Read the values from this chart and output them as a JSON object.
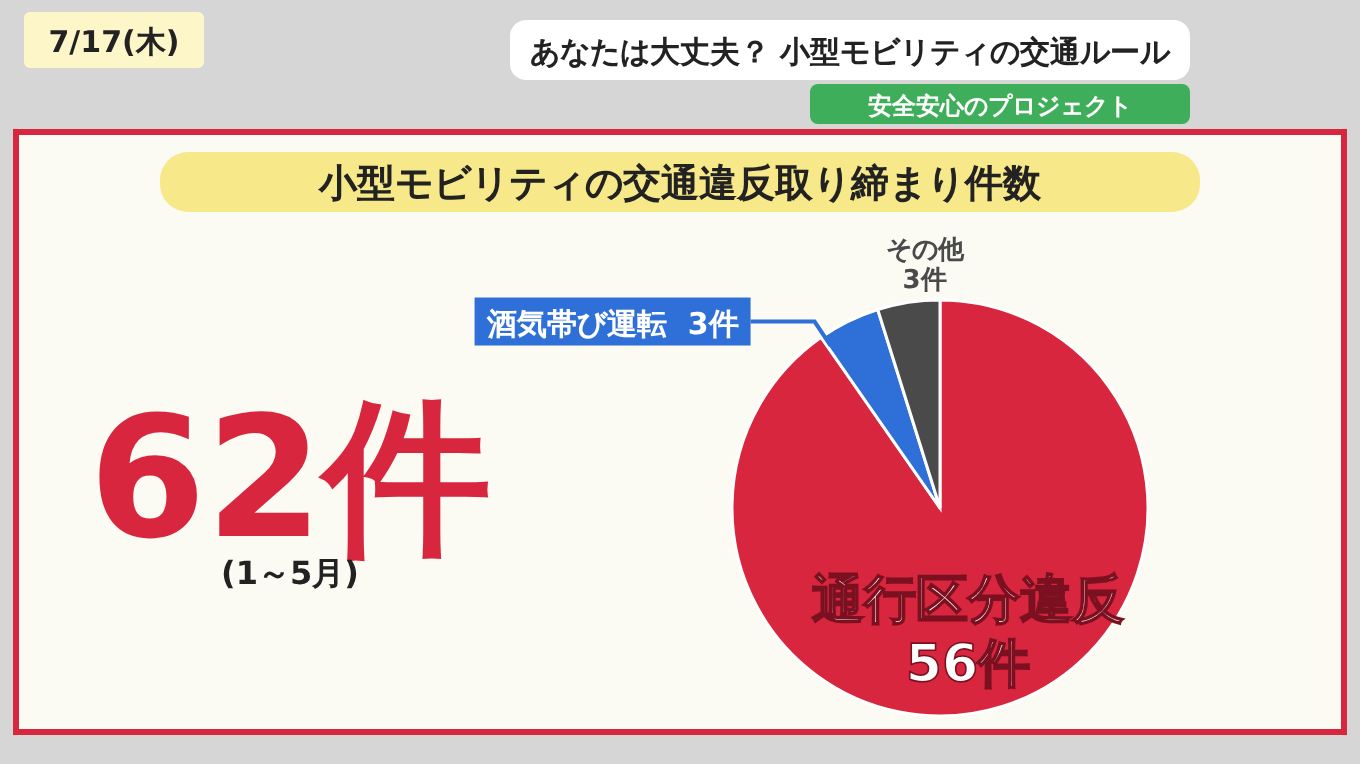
{
  "chart_data": {
    "type": "pie",
    "title": "小型モビリティの交通違反取り締まり件数",
    "categories": [
      "通行区分違反",
      "酒気帯び運転",
      "その他"
    ],
    "values": [
      56,
      3,
      3
    ],
    "value_labels": [
      "56件",
      "3件",
      "3件"
    ],
    "colors": [
      "#d7263d",
      "#2f6fd8",
      "#4a4a4a"
    ],
    "annotations": [
      "7/17(木)",
      "あなたは大丈夫？ 小型モビリティの交通ルール",
      "安全安心のプロジェクト",
      "62件",
      "(1～5月)"
    ]
  }
}
